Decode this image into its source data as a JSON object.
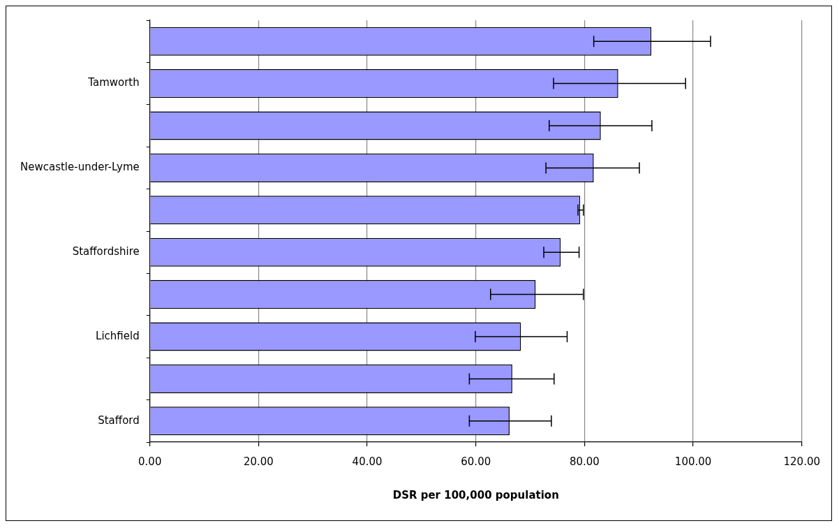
{
  "chart_data": {
    "type": "bar",
    "orientation": "horizontal",
    "xlabel": "DSR per 100,000 population",
    "categories": [
      null,
      "Tamworth",
      null,
      "Newcastle-under-Lyme",
      null,
      "Staffordshire",
      null,
      "Lichfield",
      null,
      "Stafford"
    ],
    "values": [
      92.3,
      86.2,
      83.0,
      81.7,
      79.2,
      75.6,
      71.0,
      68.3,
      66.7,
      66.2
    ],
    "errors": [
      [
        81.7,
        103.2
      ],
      [
        74.3,
        98.6
      ],
      [
        73.5,
        92.4
      ],
      [
        72.9,
        90.1
      ],
      [
        78.8,
        79.8
      ],
      [
        72.5,
        79.0
      ],
      [
        62.7,
        79.8
      ],
      [
        59.9,
        76.8
      ],
      [
        58.8,
        74.4
      ],
      [
        58.8,
        73.9
      ]
    ],
    "color": "#9999ff",
    "xlim": [
      0,
      120
    ],
    "xticks": [
      {
        "value": 0,
        "label": "0.00"
      },
      {
        "value": 20,
        "label": "20.00"
      },
      {
        "value": 40,
        "label": "40.00"
      },
      {
        "value": 60,
        "label": "60.00"
      },
      {
        "value": 80,
        "label": "80.00"
      },
      {
        "value": 100,
        "label": "100.00"
      },
      {
        "value": 120,
        "label": "120.00"
      }
    ],
    "grid": "x",
    "legend": false
  }
}
